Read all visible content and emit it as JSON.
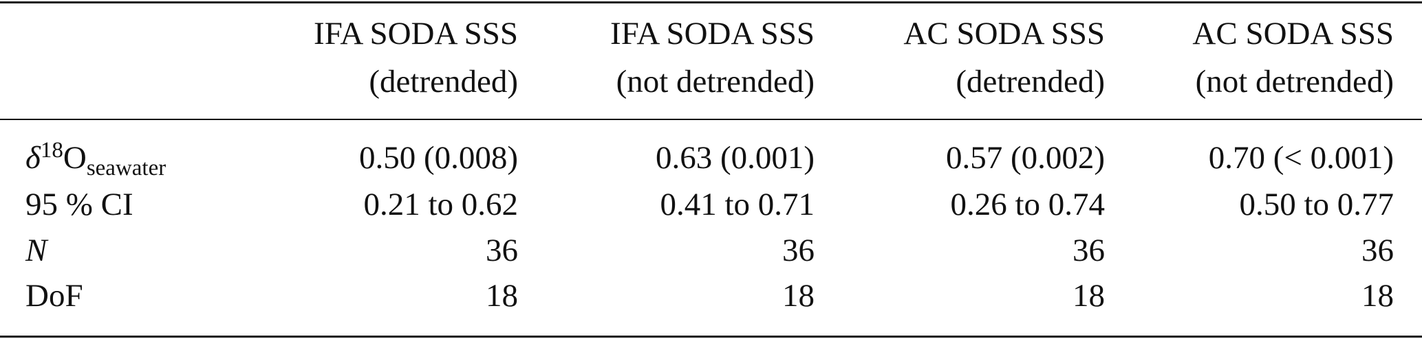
{
  "table": {
    "header": [
      [
        "IFA SODA SSS",
        "(detrended)"
      ],
      [
        "IFA SODA SSS",
        "(not detrended)"
      ],
      [
        "AC SODA SSS",
        "(detrended)"
      ],
      [
        "AC SODA SSS",
        "(not detrended)"
      ]
    ],
    "rows": [
      {
        "label": [
          "δ",
          "18",
          "O",
          "seawater"
        ],
        "cells": [
          "0.50 (0.008)",
          "0.63 (0.001)",
          "0.57 (0.002)",
          "0.70 (< 0.001)"
        ]
      },
      {
        "label": [
          "95 % CI"
        ],
        "cells": [
          "0.21 to 0.62",
          "0.41 to 0.71",
          "0.26 to 0.74",
          "0.50 to 0.77"
        ]
      },
      {
        "label": [
          "N"
        ],
        "cells": [
          "36",
          "36",
          "36",
          "36"
        ]
      },
      {
        "label": [
          "DoF"
        ],
        "cells": [
          "18",
          "18",
          "18",
          "18"
        ]
      }
    ]
  }
}
